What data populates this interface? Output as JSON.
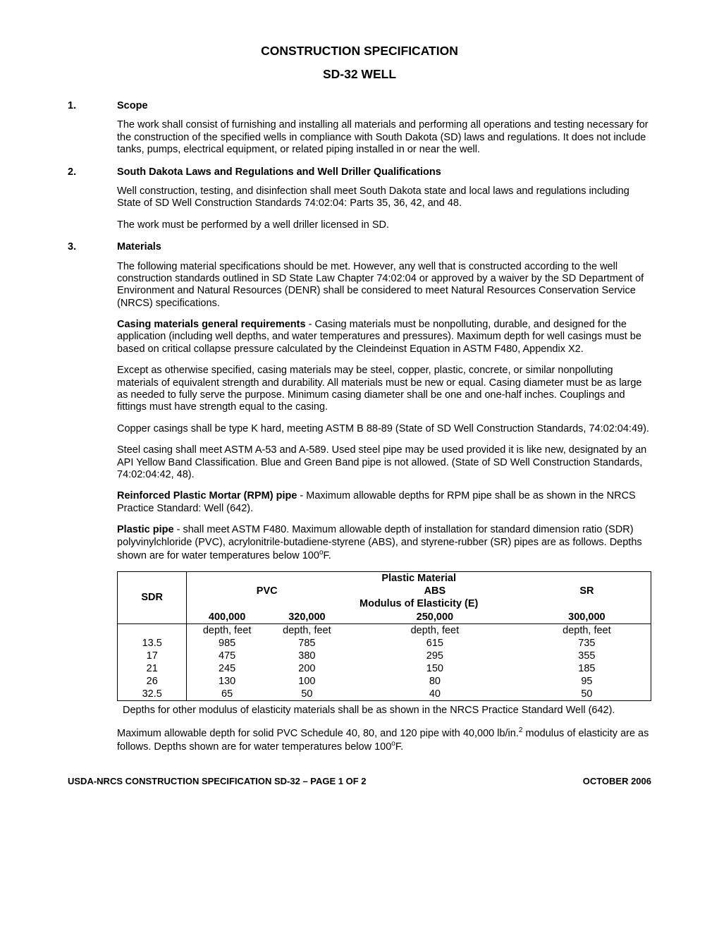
{
  "title_main": "CONSTRUCTION SPECIFICATION",
  "title_sub": "SD-32 WELL",
  "sections": {
    "s1": {
      "num": "1.",
      "heading": "Scope",
      "p1": "The work shall consist of furnishing and installing all materials and performing all operations and testing necessary for the construction of the specified wells in compliance with South Dakota (SD) laws and regulations.  It does not include tanks, pumps, electrical equipment, or related piping installed in or near the well."
    },
    "s2": {
      "num": "2.",
      "heading": "South Dakota Laws and Regulations and Well Driller Qualifications",
      "p1": "Well construction, testing, and disinfection shall meet South Dakota state and local laws and regulations including State of SD Well Construction Standards 74:02:04: Parts 35, 36, 42, and 48.",
      "p2": "The work must be performed by a well driller licensed in SD."
    },
    "s3": {
      "num": "3.",
      "heading": "Materials",
      "p1": "The following material specifications should be met.  However, any well that is constructed according to the well construction standards outlined in SD State Law Chapter 74:02:04 or approved by a waiver by the SD Department of Environment and Natural Resources (DENR) shall be considered to meet Natural Resources Conservation Service (NRCS) specifications.",
      "p2_lead": "Casing materials general requirements",
      "p2_body": " - Casing materials must be nonpolluting, durable, and designed for the application (including well depths, and water temperatures and pressures).  Maximum depth for well casings must be based on critical collapse pressure calculated by the Cleindeinst Equation in ASTM F480, Appendix X2.",
      "p3": "Except as otherwise specified, casing materials may be steel, copper, plastic, concrete, or similar nonpolluting materials of equivalent strength and durability.  All materials must be new or equal.  Casing diameter must be as large as needed to fully serve the purpose.  Minimum casing diameter shall be one and one-half inches.  Couplings and fittings must have strength equal to the casing.",
      "p4": "Copper casings shall be type K hard, meeting ASTM B 88-89 (State of SD Well Construction Standards, 74:02:04:49).",
      "p5": "Steel casing shall meet ASTM A-53 and A-589.  Used steel pipe may be used provided it is like new, designated by an API Yellow Band Classification.  Blue and Green Band pipe is not allowed.  (State of SD Well Construction Standards, 74:02:04:42, 48).",
      "p6_lead": "Reinforced Plastic Mortar (RPM) pipe",
      "p6_body": " - Maximum allowable depths for RPM pipe shall be as shown in the NRCS Practice Standard: Well (642).",
      "p7_lead": "Plastic pipe",
      "p7_body_a": " - shall meet ASTM F480.  Maximum allowable depth of installation for standard dimension ratio (SDR) polyvinylchloride (PVC), acrylonitrile-butadiene-styrene (ABS), and styrene-rubber (SR) pipes are as follows.  Depths shown are for water temperatures below 100",
      "p7_body_b": "F."
    }
  },
  "table1": {
    "caption_top": "Plastic Material",
    "col_sdr": "SDR",
    "mat1": "PVC",
    "mat2": "ABS",
    "mat3": "SR",
    "mod_caption": "Modulus of Elasticity (E)",
    "mod1": "400,000",
    "mod2": "320,000",
    "mod3": "250,000",
    "mod4": "300,000",
    "unit": "depth, feet",
    "rows": [
      {
        "sdr": "13.5",
        "v1": "985",
        "v2": "785",
        "v3": "615",
        "v4": "735"
      },
      {
        "sdr": "17",
        "v1": "475",
        "v2": "380",
        "v3": "295",
        "v4": "355"
      },
      {
        "sdr": "21",
        "v1": "245",
        "v2": "200",
        "v3": "150",
        "v4": "185"
      },
      {
        "sdr": "26",
        "v1": "130",
        "v2": "100",
        "v3": "80",
        "v4": "95"
      },
      {
        "sdr": "32.5",
        "v1": "65",
        "v2": "50",
        "v3": "40",
        "v4": "50"
      }
    ]
  },
  "after_table1": "Depths for other modulus of elasticity materials shall be as shown in the NRCS Practice Standard Well (642).",
  "p_pvc_sched_a": "Maximum allowable depth for solid PVC Schedule 40, 80, and 120 pipe with 40,000 lb/in.",
  "p_pvc_sched_sup": "2",
  "p_pvc_sched_b": " modulus of elasticity are as follows.  Depths shown are for water temperatures below 100",
  "p_pvc_sched_c": "F.",
  "footer": {
    "left_a": "USDA-NRCS CONSTRUCTION SPECIFICATION SD-32 – PAGE ",
    "left_b": "1 OF 2",
    "right": "OCTOBER 2006"
  }
}
